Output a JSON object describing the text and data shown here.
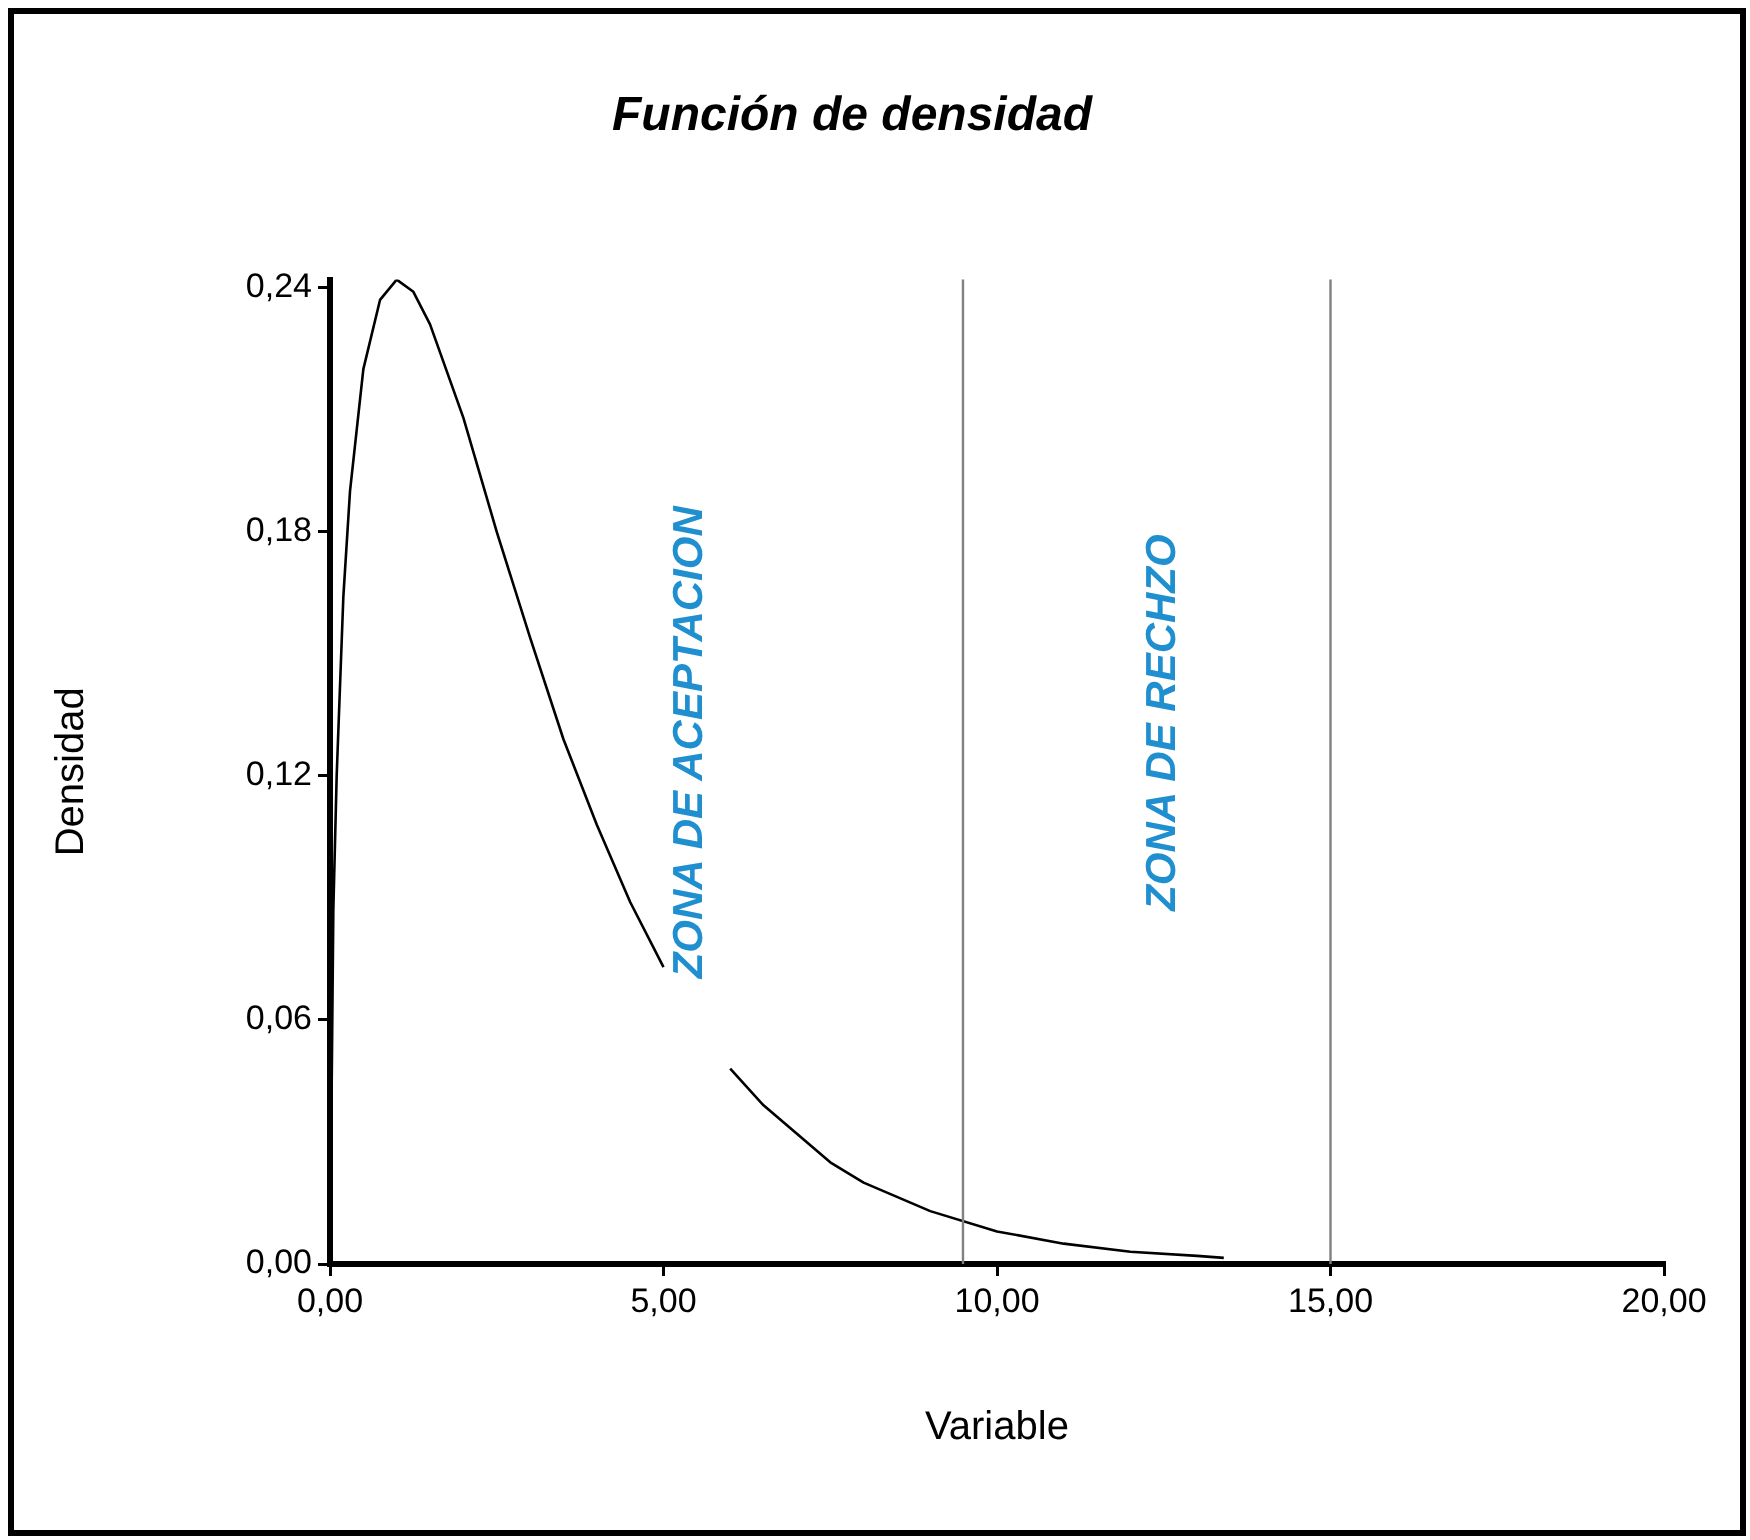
{
  "chart_data": {
    "type": "line",
    "title": "Función de densidad",
    "xlabel": "Variable",
    "ylabel": "Densidad",
    "x": [
      0,
      0.05,
      0.1,
      0.2,
      0.3,
      0.5,
      0.75,
      1,
      1.25,
      1.5,
      2,
      2.5,
      3,
      3.5,
      4,
      4.5,
      5,
      5.5,
      6,
      6.5,
      7,
      7.5,
      8,
      9,
      10,
      11,
      12,
      13,
      13.4
    ],
    "series": [
      {
        "color": "#000000",
        "values": [
          0,
          0.087,
          0.12,
          0.164,
          0.19,
          0.22,
          0.237,
          0.242,
          0.239,
          0.231,
          0.208,
          0.18,
          0.154,
          0.129,
          0.108,
          0.089,
          0.073,
          null,
          0.048,
          0.039,
          0.032,
          0.025,
          0.02,
          0.013,
          0.008,
          0.005,
          0.003,
          0.002,
          0.0015
        ]
      }
    ],
    "xlim": [
      0,
      20
    ],
    "xticks": [
      {
        "value": 0,
        "label": "0,00"
      },
      {
        "value": 5,
        "label": "5,00"
      },
      {
        "value": 10,
        "label": "10,00"
      },
      {
        "value": 15,
        "label": "15,00"
      },
      {
        "value": 20,
        "label": "20,00"
      }
    ],
    "ylim": [
      0,
      0.242
    ],
    "yticks": [
      {
        "value": 0,
        "label": "0,00"
      },
      {
        "value": 0.06,
        "label": "0,06"
      },
      {
        "value": 0.12,
        "label": "0,12"
      },
      {
        "value": 0.18,
        "label": "0,18"
      },
      {
        "value": 0.24,
        "label": "0,24"
      }
    ],
    "ref_lines": [
      {
        "axis": "x",
        "value": 9.49,
        "color": "#808080"
      },
      {
        "axis": "x",
        "value": 15,
        "color": "#808080"
      }
    ],
    "annotations": [
      "ZONA DE ACEPTACION",
      "ZONA DE RECHZO"
    ],
    "legend": false,
    "marker": "none",
    "line_style": "solid"
  }
}
